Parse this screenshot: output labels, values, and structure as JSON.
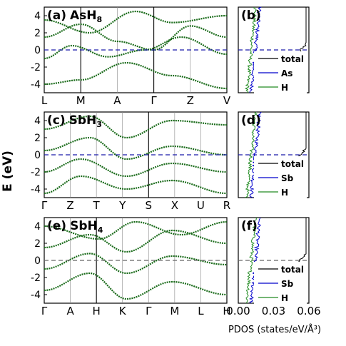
{
  "figure": {
    "y_axis_label": "E (eV)",
    "pdos_x_label": "PDOS (states/eV/Å³)",
    "pdos_x_ticks": [
      "0.00",
      "0.03",
      "0.06"
    ],
    "pdos_x_tick_values": [
      0.0,
      0.03,
      0.06
    ],
    "energy_ticks": [
      "4",
      "2",
      "0",
      "-2",
      "-4"
    ],
    "colors": {
      "band": "#1a6b1a",
      "fermi_dashed": "#1a1aaa",
      "total": "#000000",
      "element": "#0000cc",
      "hydrogen": "#228b22"
    }
  },
  "chart_data": [
    {
      "type": "line",
      "panel": "(a)",
      "compound": "AsH",
      "subscript": "8",
      "ylim": [
        -5,
        5
      ],
      "fermi_line": "dashed-blue",
      "k_labels": [
        "L",
        "M",
        "A",
        "Γ",
        "Z",
        "V"
      ],
      "k_vertical_lines": [
        "M",
        "Γ"
      ],
      "bands": [
        [
          [
            0,
            -4.0
          ],
          [
            0.2,
            -3.5
          ],
          [
            0.45,
            -1.5
          ],
          [
            0.7,
            -3.0
          ],
          [
            1,
            -4.5
          ]
        ],
        [
          [
            0,
            -1.0
          ],
          [
            0.15,
            0.5
          ],
          [
            0.35,
            -0.8
          ],
          [
            0.55,
            0.0
          ],
          [
            0.75,
            1.5
          ],
          [
            1,
            -0.5
          ]
        ],
        [
          [
            0,
            1.5
          ],
          [
            0.2,
            3.0
          ],
          [
            0.4,
            1.0
          ],
          [
            0.6,
            0.0
          ],
          [
            0.8,
            2.8
          ],
          [
            1,
            1.5
          ]
        ],
        [
          [
            0,
            3.5
          ],
          [
            0.25,
            2.0
          ],
          [
            0.5,
            4.5
          ],
          [
            0.7,
            3.2
          ],
          [
            1,
            4.0
          ]
        ]
      ],
      "pdos_panel": "(b)",
      "pdos_legend": [
        "total",
        "As",
        "H"
      ]
    },
    {
      "type": "line",
      "panel": "(c)",
      "compound": "SbH",
      "subscript": "3",
      "ylim": [
        -5,
        5
      ],
      "fermi_line": "dashed-blue",
      "k_labels": [
        "Γ",
        "Z",
        "T",
        "Y",
        "S",
        "X",
        "U",
        "R"
      ],
      "k_vertical_lines": [
        "S"
      ],
      "bands": [
        [
          [
            0,
            -4.5
          ],
          [
            0.2,
            -2.5
          ],
          [
            0.45,
            -4.0
          ],
          [
            0.7,
            -3.0
          ],
          [
            1,
            -4.5
          ]
        ],
        [
          [
            0,
            -2.0
          ],
          [
            0.2,
            -0.5
          ],
          [
            0.45,
            -2.5
          ],
          [
            0.7,
            -1.0
          ],
          [
            1,
            -2.0
          ]
        ],
        [
          [
            0,
            0.5
          ],
          [
            0.25,
            2.0
          ],
          [
            0.45,
            -0.5
          ],
          [
            0.7,
            1.0
          ],
          [
            1,
            0.0
          ]
        ],
        [
          [
            0,
            3.0
          ],
          [
            0.25,
            4.5
          ],
          [
            0.45,
            2.0
          ],
          [
            0.7,
            4.0
          ],
          [
            1,
            3.5
          ]
        ]
      ],
      "pdos_panel": "(d)",
      "pdos_legend": [
        "total",
        "Sb",
        "H"
      ]
    },
    {
      "type": "line",
      "panel": "(e)",
      "compound": "SbH",
      "subscript": "4",
      "ylim": [
        -5,
        5
      ],
      "fermi_line": "dashed-gray",
      "k_labels": [
        "Γ",
        "A",
        "H",
        "K",
        "Γ",
        "M",
        "L",
        "H"
      ],
      "k_vertical_lines": [
        "H"
      ],
      "bands": [
        [
          [
            0,
            -3.5
          ],
          [
            0.25,
            -1.5
          ],
          [
            0.45,
            -4.5
          ],
          [
            0.7,
            -2.5
          ],
          [
            1,
            -4.0
          ]
        ],
        [
          [
            0,
            -1.0
          ],
          [
            0.25,
            0.8
          ],
          [
            0.45,
            -1.5
          ],
          [
            0.7,
            0.5
          ],
          [
            1,
            -0.5
          ]
        ],
        [
          [
            0,
            1.5
          ],
          [
            0.25,
            3.0
          ],
          [
            0.45,
            1.0
          ],
          [
            0.7,
            3.5
          ],
          [
            1,
            2.0
          ]
        ],
        [
          [
            0,
            4.0
          ],
          [
            0.3,
            2.5
          ],
          [
            0.5,
            4.5
          ],
          [
            0.75,
            3.0
          ],
          [
            1,
            4.5
          ]
        ]
      ],
      "pdos_panel": "(f)",
      "pdos_legend": [
        "total",
        "Sb",
        "H"
      ]
    }
  ]
}
